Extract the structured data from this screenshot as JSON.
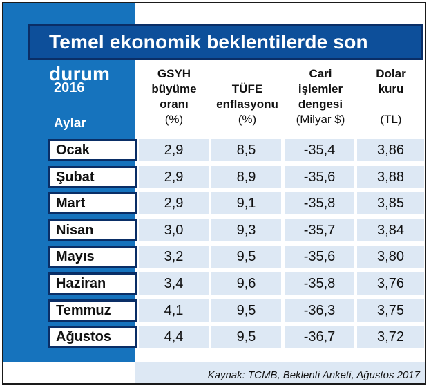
{
  "title": "Temel ekonomik beklentilerde son durum",
  "year_label": "2016",
  "row_header": "Aylar",
  "columns": [
    {
      "line1": "GSYH",
      "line2": "büyüme",
      "line3": "oranı",
      "unit": "(%)"
    },
    {
      "line1": "",
      "line2": "TÜFE",
      "line3": "enflasyonu",
      "unit": "(%)"
    },
    {
      "line1": "Cari",
      "line2": "işlemler",
      "line3": "dengesi",
      "unit": "(Milyar $)"
    },
    {
      "line1": "Dolar",
      "line2": "kuru",
      "line3": "",
      "unit": "(TL)"
    }
  ],
  "rows": [
    {
      "month": "Ocak",
      "values": [
        "2,9",
        "8,5",
        "-35,4",
        "3,86"
      ]
    },
    {
      "month": "Şubat",
      "values": [
        "2,9",
        "8,9",
        "-35,6",
        "3,88"
      ]
    },
    {
      "month": "Mart",
      "values": [
        "2,9",
        "9,1",
        "-35,8",
        "3,85"
      ]
    },
    {
      "month": "Nisan",
      "values": [
        "3,0",
        "9,3",
        "-35,7",
        "3,84"
      ]
    },
    {
      "month": "Mayıs",
      "values": [
        "3,2",
        "9,5",
        "-35,6",
        "3,80"
      ]
    },
    {
      "month": "Haziran",
      "values": [
        "3,4",
        "9,6",
        "-35,8",
        "3,76"
      ]
    },
    {
      "month": "Temmuz",
      "values": [
        "4,1",
        "9,5",
        "-36,3",
        "3,75"
      ]
    },
    {
      "month": "Ağustos",
      "values": [
        "4,4",
        "9,5",
        "-36,7",
        "3,72"
      ]
    }
  ],
  "source": "Kaynak: TCMB, Beklenti Anketi, Ağustos 2017",
  "colors": {
    "title_bg": "#0d4f9a",
    "side_bar": "#1673bd",
    "cell_bg": "#dde8f4"
  }
}
